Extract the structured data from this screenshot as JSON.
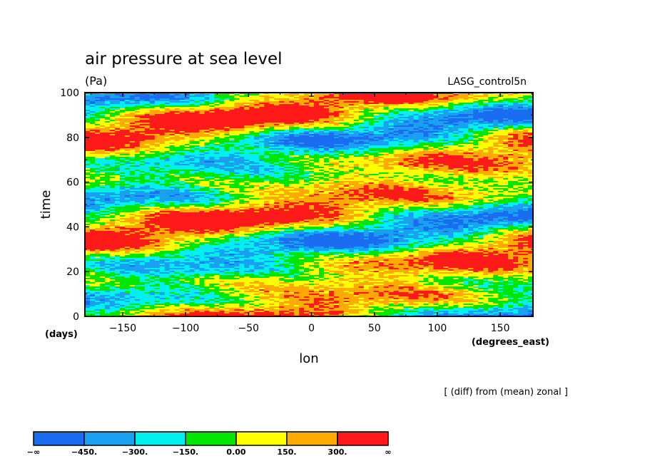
{
  "chart_data": {
    "type": "heatmap",
    "title": "air pressure at sea level",
    "units_label": "(Pa)",
    "source_label": "LASG_control5n",
    "xlabel": "lon",
    "xunit_label": "(degrees_east)",
    "ylabel": "time",
    "yunit_label": "(days)",
    "operation_note": "[ (diff) from (mean) zonal ]",
    "xlim": [
      -180,
      176
    ],
    "ylim": [
      0,
      100
    ],
    "x_ticks": [
      {
        "value": -150,
        "label": "−150"
      },
      {
        "value": -100,
        "label": "−100"
      },
      {
        "value": -50,
        "label": "−50"
      },
      {
        "value": 0,
        "label": "0"
      },
      {
        "value": 50,
        "label": "50"
      },
      {
        "value": 100,
        "label": "100"
      },
      {
        "value": 150,
        "label": "150"
      }
    ],
    "y_ticks": [
      {
        "value": 0,
        "label": "0"
      },
      {
        "value": 20,
        "label": "20"
      },
      {
        "value": 40,
        "label": "40"
      },
      {
        "value": 60,
        "label": "60"
      },
      {
        "value": 80,
        "label": "80"
      },
      {
        "value": 100,
        "label": "100"
      }
    ],
    "colorbar": {
      "levels": [
        "−∞",
        "−450.",
        "−300.",
        "−150.",
        "0.00",
        "150.",
        "300.",
        "∞"
      ],
      "colors": [
        "#1a6cf0",
        "#1aa0f0",
        "#00f0f0",
        "#00e600",
        "#ffff00",
        "#ffaa00",
        "#ff1a1a"
      ]
    },
    "level_values": [
      -600,
      -450,
      -300,
      -150,
      0,
      150,
      300,
      450
    ]
  }
}
